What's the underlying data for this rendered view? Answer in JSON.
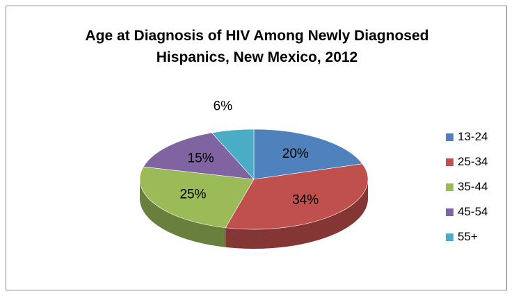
{
  "chart_data": {
    "type": "pie",
    "title": "Age at Diagnosis of HIV Among Newly Diagnosed Hispanics, New Mexico, 2012",
    "title_lines": [
      "Age at Diagnosis of HIV Among Newly Diagnosed",
      "Hispanics, New Mexico, 2012"
    ],
    "categories": [
      "13-24",
      "25-34",
      "35-44",
      "45-54",
      "55+"
    ],
    "values": [
      20,
      34,
      25,
      15,
      6
    ],
    "labels": [
      "20%",
      "34%",
      "25%",
      "15%",
      "6%"
    ],
    "colors": [
      "#4F81BD",
      "#C0504D",
      "#9BBB59",
      "#8064A2",
      "#4BACC6"
    ],
    "legend_position": "right",
    "style": "3d"
  }
}
